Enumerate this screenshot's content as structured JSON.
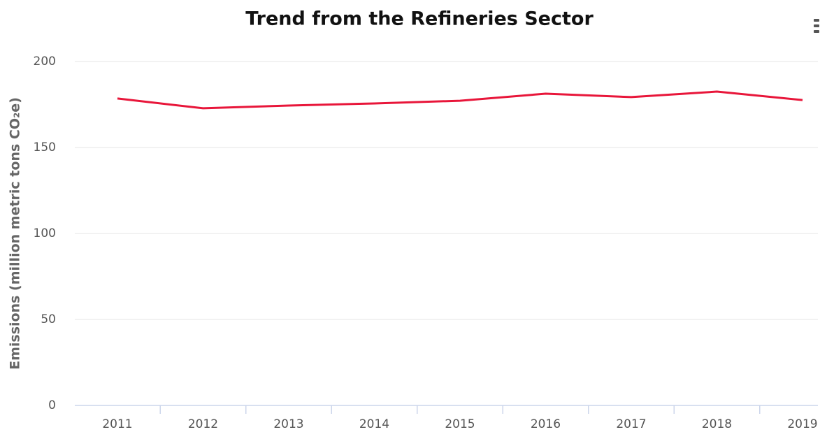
{
  "chart_data": {
    "type": "line",
    "title": "Trend from the Refineries Sector",
    "y_label": "Emissions (million metric tons CO₂e)",
    "categories": [
      "2011",
      "2012",
      "2013",
      "2014",
      "2015",
      "2016",
      "2017",
      "2018",
      "2019"
    ],
    "series": [
      {
        "name": "Refineries",
        "color": "#e8163a",
        "values": [
          178.5,
          172.8,
          174.4,
          175.6,
          177.2,
          181.3,
          179.3,
          182.5,
          177.6
        ]
      }
    ],
    "ylim": [
      0,
      200
    ],
    "yticks": [
      0,
      50,
      100,
      150,
      200
    ],
    "grid": true
  }
}
